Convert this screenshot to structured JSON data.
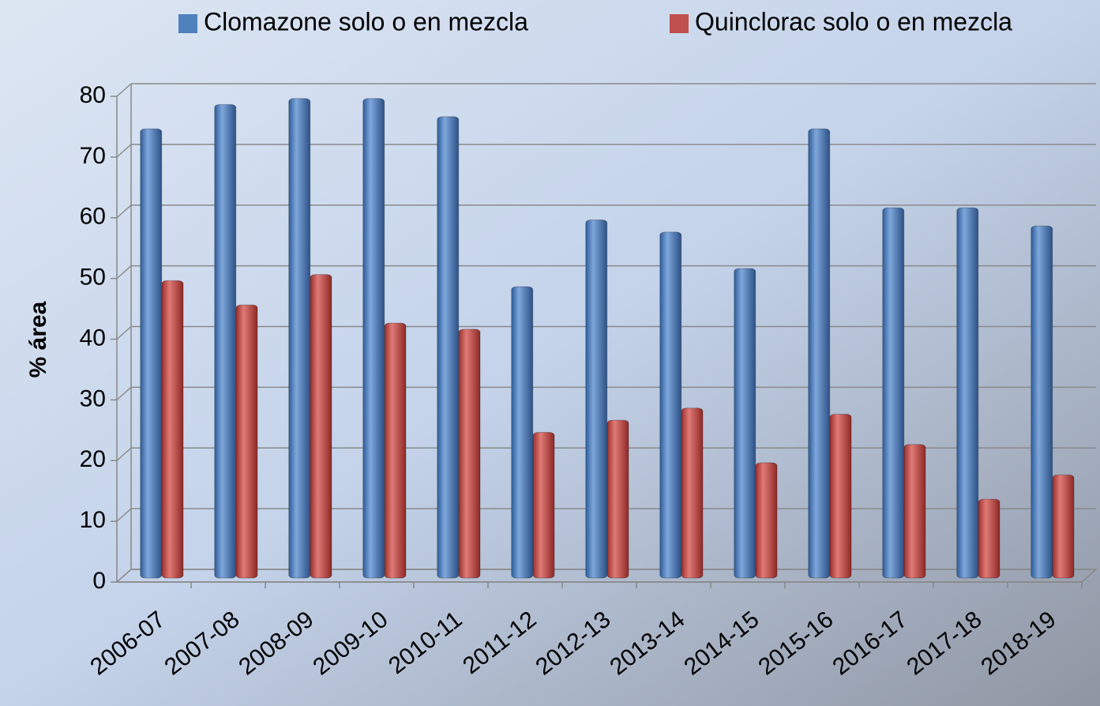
{
  "chart_data": {
    "type": "bar",
    "y_label": "% área",
    "categories": [
      "2006-07",
      "2007-08",
      "2008-09",
      "2009-10",
      "2010-11",
      "2011-12",
      "2012-13",
      "2013-14",
      "2014-15",
      "2015-16",
      "2016-17",
      "2017-18",
      "2018-19"
    ],
    "series": [
      {
        "name": "Clomazone solo o en mezcla",
        "color": "#4f81bd",
        "values": [
          74,
          78,
          79,
          79,
          76,
          48,
          59,
          57,
          51,
          74,
          61,
          61,
          58
        ]
      },
      {
        "name": "Quinclorac solo o en mezcla",
        "color": "#c0504d",
        "values": [
          49,
          45,
          50,
          42,
          41,
          24,
          26,
          28,
          19,
          27,
          22,
          13,
          17
        ]
      }
    ],
    "ylim": [
      0,
      80
    ],
    "yticks": [
      0,
      10,
      20,
      30,
      40,
      50,
      60,
      70,
      80
    ],
    "grid": true,
    "legend": "top"
  }
}
